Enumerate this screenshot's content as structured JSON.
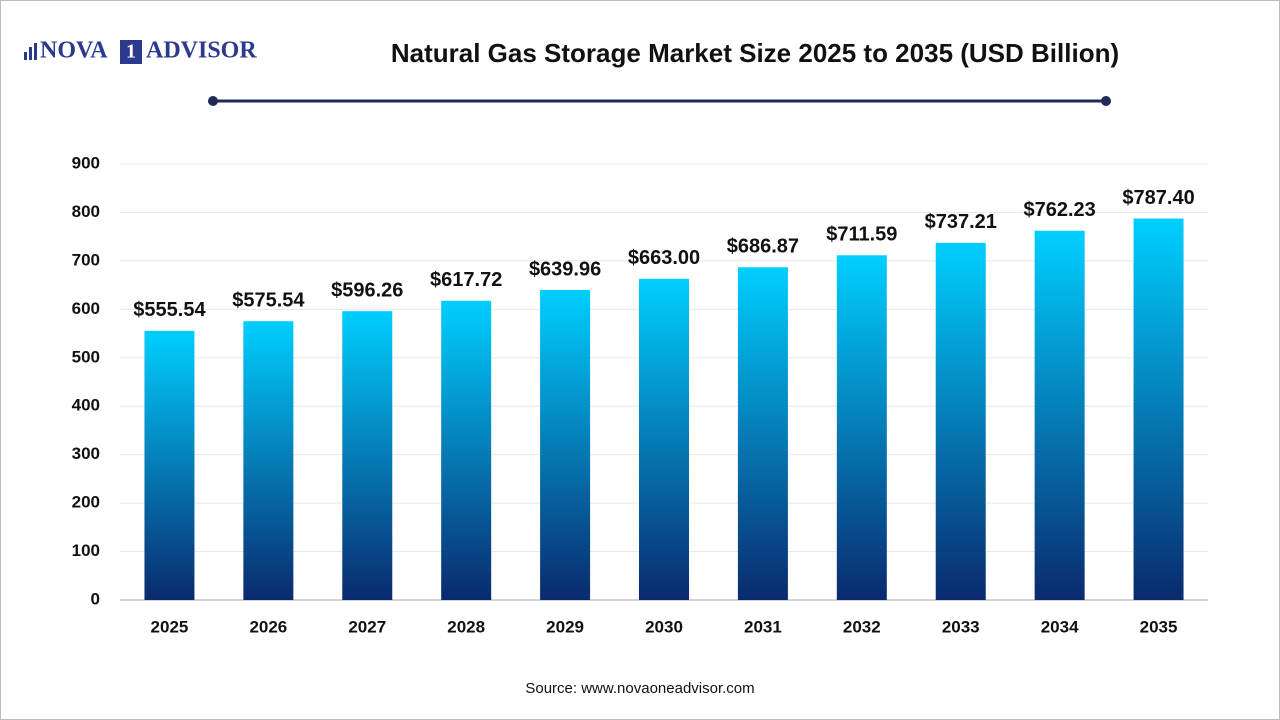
{
  "chart_data": {
    "type": "bar",
    "title": "Natural Gas Storage Market Size 2025 to 2035 (USD Billion)",
    "logo": {
      "left": "NOVA",
      "mark": "1",
      "right": "ADVISOR"
    },
    "source": "Source: www.novaoneadvisor.com",
    "categories": [
      "2025",
      "2026",
      "2027",
      "2028",
      "2029",
      "2030",
      "2031",
      "2032",
      "2033",
      "2034",
      "2035"
    ],
    "values": [
      555.54,
      575.54,
      596.26,
      617.72,
      639.96,
      663.0,
      686.87,
      711.59,
      737.21,
      762.23,
      787.4
    ],
    "value_labels": [
      "$555.54",
      "$575.54",
      "$596.26",
      "$617.72",
      "$639.96",
      "$663.00",
      "$686.87",
      "$711.59",
      "$737.21",
      "$762.23",
      "$787.40"
    ],
    "color_top": "#00cfff",
    "color_bottom": "#0a2a6e",
    "ylim": [
      0,
      900
    ],
    "yticks": [
      0,
      100,
      200,
      300,
      400,
      500,
      600,
      700,
      800,
      900
    ],
    "grid": true
  }
}
